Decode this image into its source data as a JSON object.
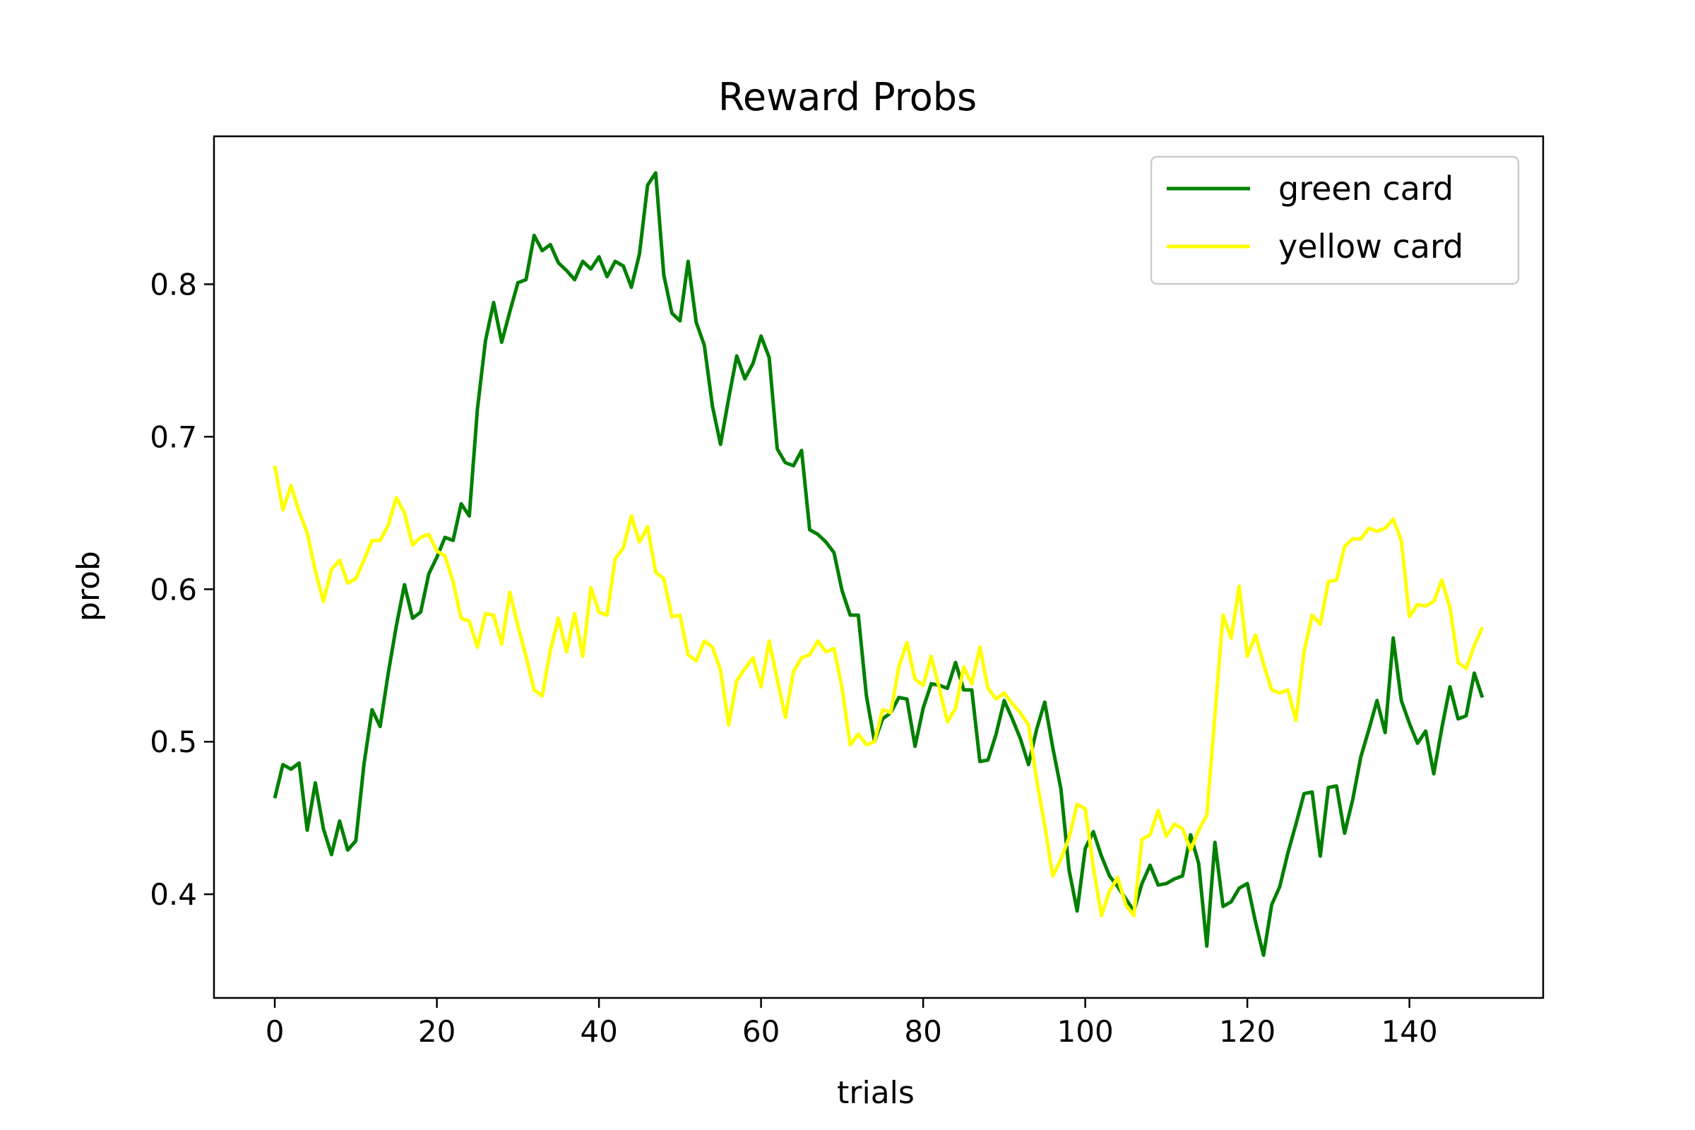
{
  "chart_data": {
    "type": "line",
    "title": "Reward Probs",
    "xlabel": "trials",
    "ylabel": "prob",
    "xlim": [
      -7.5,
      156.5
    ],
    "ylim": [
      0.332,
      0.897
    ],
    "xticks": [
      0,
      20,
      40,
      60,
      80,
      100,
      120,
      140
    ],
    "yticks": [
      0.4,
      0.5,
      0.6,
      0.7,
      0.8
    ],
    "ytick_labels": [
      "0.4",
      "0.5",
      "0.6",
      "0.7",
      "0.8"
    ],
    "legend_position": "upper-right",
    "grid": false,
    "series": [
      {
        "name": "green card",
        "color": "#008000",
        "values": [
          0.463,
          0.485,
          0.482,
          0.486,
          0.442,
          0.473,
          0.443,
          0.426,
          0.448,
          0.429,
          0.435,
          0.485,
          0.521,
          0.51,
          0.545,
          0.576,
          0.603,
          0.581,
          0.585,
          0.61,
          0.621,
          0.634,
          0.632,
          0.656,
          0.648,
          0.718,
          0.763,
          0.788,
          0.762,
          0.782,
          0.801,
          0.803,
          0.832,
          0.822,
          0.826,
          0.814,
          0.809,
          0.803,
          0.815,
          0.81,
          0.818,
          0.805,
          0.815,
          0.812,
          0.798,
          0.82,
          0.865,
          0.873,
          0.806,
          0.781,
          0.776,
          0.815,
          0.775,
          0.76,
          0.72,
          0.695,
          0.725,
          0.753,
          0.738,
          0.748,
          0.766,
          0.752,
          0.692,
          0.683,
          0.681,
          0.691,
          0.639,
          0.636,
          0.631,
          0.624,
          0.599,
          0.583,
          0.583,
          0.53,
          0.5,
          0.515,
          0.519,
          0.529,
          0.528,
          0.497,
          0.522,
          0.538,
          0.537,
          0.535,
          0.552,
          0.534,
          0.534,
          0.487,
          0.488,
          0.505,
          0.527,
          0.515,
          0.502,
          0.485,
          0.508,
          0.526,
          0.496,
          0.469,
          0.416,
          0.389,
          0.43,
          0.441,
          0.425,
          0.412,
          0.405,
          0.397,
          0.389,
          0.407,
          0.419,
          0.406,
          0.407,
          0.41,
          0.412,
          0.439,
          0.42,
          0.366,
          0.434,
          0.392,
          0.395,
          0.404,
          0.407,
          0.382,
          0.36,
          0.393,
          0.405,
          0.427,
          0.446,
          0.466,
          0.467,
          0.425,
          0.47,
          0.471,
          0.44,
          0.462,
          0.49,
          0.508,
          0.527,
          0.506,
          0.568,
          0.527,
          0.512,
          0.499,
          0.507,
          0.479,
          0.509,
          0.536,
          0.515,
          0.517,
          0.545,
          0.529
        ]
      },
      {
        "name": "yellow card",
        "color": "#ffff00",
        "values": [
          0.681,
          0.652,
          0.668,
          0.651,
          0.637,
          0.612,
          0.592,
          0.613,
          0.619,
          0.604,
          0.607,
          0.619,
          0.632,
          0.632,
          0.642,
          0.66,
          0.65,
          0.629,
          0.634,
          0.636,
          0.625,
          0.622,
          0.605,
          0.581,
          0.579,
          0.562,
          0.584,
          0.583,
          0.564,
          0.598,
          0.576,
          0.556,
          0.534,
          0.53,
          0.56,
          0.581,
          0.559,
          0.584,
          0.556,
          0.601,
          0.585,
          0.583,
          0.62,
          0.627,
          0.648,
          0.631,
          0.641,
          0.611,
          0.607,
          0.582,
          0.583,
          0.557,
          0.553,
          0.566,
          0.562,
          0.547,
          0.511,
          0.54,
          0.548,
          0.555,
          0.536,
          0.566,
          0.541,
          0.516,
          0.546,
          0.555,
          0.557,
          0.566,
          0.559,
          0.561,
          0.535,
          0.498,
          0.505,
          0.498,
          0.5,
          0.521,
          0.519,
          0.549,
          0.565,
          0.541,
          0.537,
          0.556,
          0.535,
          0.513,
          0.522,
          0.549,
          0.538,
          0.562,
          0.535,
          0.528,
          0.532,
          0.525,
          0.519,
          0.511,
          0.475,
          0.445,
          0.412,
          0.423,
          0.437,
          0.459,
          0.456,
          0.418,
          0.386,
          0.402,
          0.411,
          0.393,
          0.386,
          0.436,
          0.439,
          0.455,
          0.438,
          0.446,
          0.443,
          0.429,
          0.442,
          0.452,
          0.517,
          0.583,
          0.568,
          0.602,
          0.556,
          0.57,
          0.551,
          0.534,
          0.532,
          0.534,
          0.514,
          0.559,
          0.583,
          0.577,
          0.605,
          0.606,
          0.628,
          0.633,
          0.633,
          0.64,
          0.638,
          0.64,
          0.646,
          0.632,
          0.582,
          0.59,
          0.589,
          0.592,
          0.606,
          0.588,
          0.552,
          0.548,
          0.563,
          0.575
        ]
      }
    ]
  }
}
